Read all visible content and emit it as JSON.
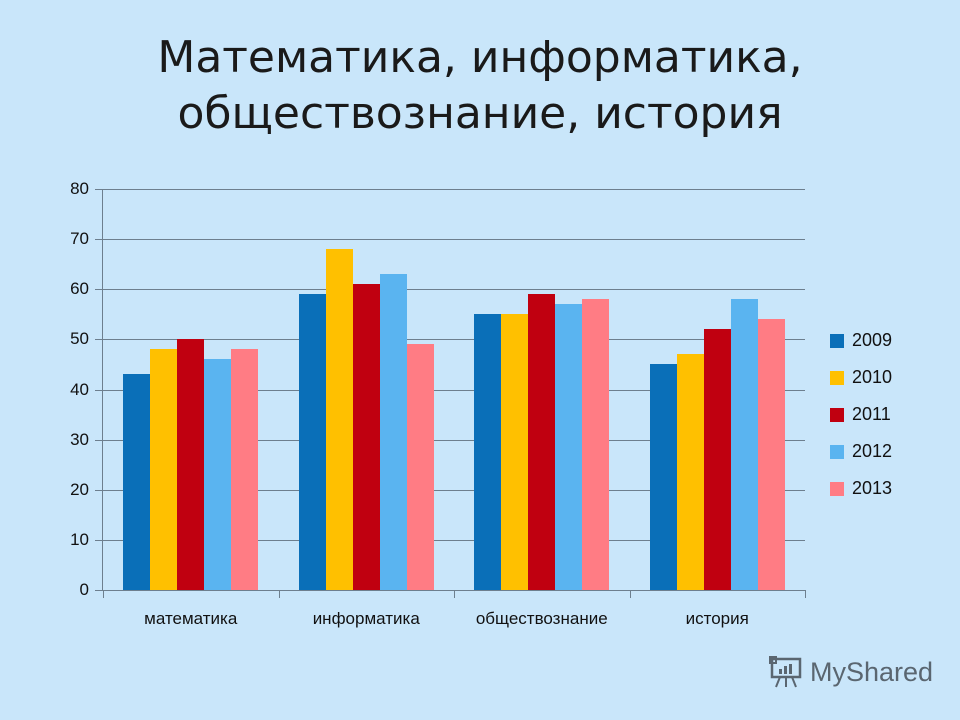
{
  "title_line1": "Математика, информатика,",
  "title_line2": "обществознание, история",
  "watermark": "MyShared",
  "colors": {
    "2009": "#0a6fb8",
    "2010": "#ffc000",
    "2011": "#c00010",
    "2012": "#5ab4f0",
    "2013": "#ff7c84",
    "background": "#c9e6fa",
    "grid": "#6d7f8e"
  },
  "chart_data": {
    "type": "bar",
    "title": "Математика, информатика, обществознание, история",
    "categories": [
      "математика",
      "информатика",
      "обществознание",
      "история"
    ],
    "series": [
      {
        "name": "2009",
        "values": [
          43,
          59,
          55,
          45
        ]
      },
      {
        "name": "2010",
        "values": [
          48,
          68,
          55,
          47
        ]
      },
      {
        "name": "2011",
        "values": [
          50,
          61,
          59,
          52
        ]
      },
      {
        "name": "2012",
        "values": [
          46,
          63,
          57,
          58
        ]
      },
      {
        "name": "2013",
        "values": [
          48,
          49,
          58,
          54
        ]
      }
    ],
    "xlabel": "",
    "ylabel": "",
    "ylim": [
      0,
      80
    ],
    "yticks": [
      0,
      10,
      20,
      30,
      40,
      50,
      60,
      70,
      80
    ],
    "grid": true,
    "legend_position": "right"
  }
}
